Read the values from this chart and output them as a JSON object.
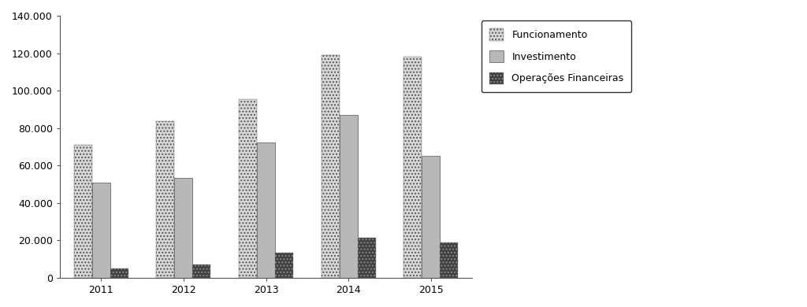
{
  "years": [
    "2011",
    "2012",
    "2013",
    "2014",
    "2015"
  ],
  "funcionamento": [
    71000,
    83500,
    95500,
    119000,
    118000
  ],
  "investimento": [
    51000,
    53500,
    72500,
    87000,
    65000
  ],
  "operacoes_financeiras": [
    5000,
    7000,
    13500,
    21500,
    19000
  ],
  "ylim": [
    0,
    140000
  ],
  "yticks": [
    0,
    20000,
    40000,
    60000,
    80000,
    100000,
    120000,
    140000
  ],
  "ytick_labels": [
    "0",
    "20.000",
    "40.000",
    "60.000",
    "80.000",
    "100.000",
    "120.000",
    "140.000"
  ],
  "legend_labels": [
    "Funcionamento",
    "Investimento",
    "Operações Financeiras"
  ],
  "bar_width": 0.22,
  "funcionamento_hatch": "....",
  "investimento_hatch": "",
  "operacoes_hatch": "....",
  "funcionamento_facecolor": "#d8d8d8",
  "investimento_facecolor": "#b8b8b8",
  "operacoes_facecolor": "#404040",
  "funcionamento_edgecolor": "#555555",
  "investimento_edgecolor": "#555555",
  "operacoes_edgecolor": "#888888",
  "background_color": "#ffffff",
  "fig_width": 10.24,
  "fig_height": 3.9,
  "dpi": 100
}
